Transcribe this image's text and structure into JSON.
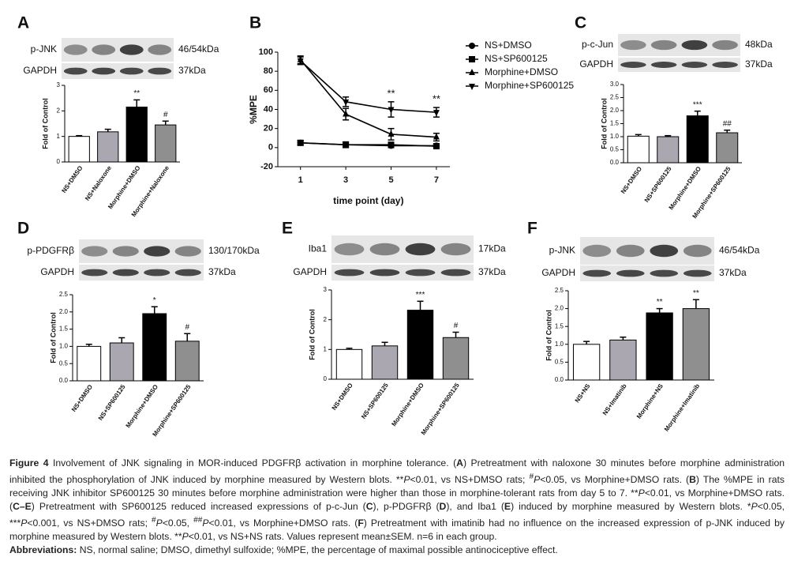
{
  "chart_data": [
    {
      "type": "bar",
      "panel": "A",
      "blots": [
        {
          "label": "p-JNK",
          "size": "46/54kDa"
        },
        {
          "label": "GAPDH",
          "size": "37kDa"
        }
      ],
      "ylabel": "Fold of Control",
      "categories": [
        "NS+DMSO",
        "NS+Naloxone",
        "Morphine+DMSO",
        "Morphine+Naloxone"
      ],
      "values": [
        1.0,
        1.18,
        2.15,
        1.45
      ],
      "errors": [
        0.03,
        0.1,
        0.28,
        0.15
      ],
      "annotations": [
        null,
        null,
        "**",
        "#"
      ],
      "colors": [
        "#ffffff",
        "#aaa7b1",
        "#000000",
        "#8f8f8f"
      ],
      "ylim": [
        0,
        3
      ],
      "yticks": [
        0,
        1,
        2,
        3
      ]
    },
    {
      "type": "line",
      "panel": "B",
      "ylabel": "%MPE",
      "xlabel": "time point (day)",
      "x": [
        1,
        3,
        5,
        7
      ],
      "series": [
        {
          "name": "NS+DMSO",
          "marker": "circle",
          "color": "#000000",
          "values": [
            5,
            3,
            2,
            2
          ],
          "errors": [
            2,
            2,
            2,
            1.5
          ]
        },
        {
          "name": "NS+SP600125",
          "marker": "square",
          "color": "#000000",
          "values": [
            5,
            3,
            3,
            1.5
          ],
          "errors": [
            2.5,
            3,
            2,
            1.5
          ]
        },
        {
          "name": "Morphine+DMSO",
          "marker": "triangle-up",
          "color": "#000000",
          "values": [
            92,
            35,
            14,
            11
          ],
          "errors": [
            4,
            6,
            6,
            4
          ]
        },
        {
          "name": "Morphine+SP600125",
          "marker": "triangle-down",
          "color": "#000000",
          "values": [
            91,
            48,
            40,
            37
          ],
          "errors": [
            4,
            5,
            8,
            5
          ]
        }
      ],
      "annotations": [
        null,
        null,
        "**",
        "**"
      ],
      "legend": "right",
      "xlim": [
        0,
        7.6
      ],
      "xticks": [
        1,
        3,
        5,
        7
      ],
      "ylim": [
        -20,
        100
      ],
      "yticks": [
        -20,
        0,
        20,
        40,
        60,
        80,
        100
      ]
    },
    {
      "type": "bar",
      "panel": "C",
      "blots": [
        {
          "label": "p-c-Jun",
          "size": "48kDa"
        },
        {
          "label": "GAPDH",
          "size": "37kDa"
        }
      ],
      "ylabel": "Fold of Control",
      "categories": [
        "NS+DMSO",
        "NS+SP600125",
        "Morphine+DMSO",
        "Morphine+SP600125"
      ],
      "values": [
        1.02,
        1.0,
        1.8,
        1.15
      ],
      "errors": [
        0.06,
        0.04,
        0.18,
        0.1
      ],
      "annotations": [
        null,
        null,
        "***",
        "##"
      ],
      "colors": [
        "#ffffff",
        "#aaa7b1",
        "#000000",
        "#8f8f8f"
      ],
      "ylim": [
        0,
        3
      ],
      "yticks": [
        {
          "value": 0,
          "label": "0.0"
        },
        0.5,
        {
          "value": 1,
          "label": "1.0"
        },
        1.5,
        {
          "value": 2,
          "label": "2.0"
        },
        2.5,
        {
          "value": 3,
          "label": "3.0"
        }
      ]
    },
    {
      "type": "bar",
      "panel": "D",
      "blots": [
        {
          "label": "p-PDGFRβ",
          "size": "130/170kDa"
        },
        {
          "label": "GAPDH",
          "size": "37kDa"
        }
      ],
      "ylabel": "Fold of Control",
      "categories": [
        "NS+DMSO",
        "NS+SP600125",
        "Morphine+DMSO",
        "Morphine+SP600125"
      ],
      "values": [
        1.0,
        1.1,
        1.95,
        1.15
      ],
      "errors": [
        0.06,
        0.15,
        0.2,
        0.22
      ],
      "annotations": [
        null,
        null,
        "*",
        "#"
      ],
      "colors": [
        "#ffffff",
        "#aaa7b1",
        "#000000",
        "#8f8f8f"
      ],
      "ylim": [
        0,
        2.5
      ],
      "yticks": [
        {
          "value": 0,
          "label": "0.0"
        },
        0.5,
        {
          "value": 1,
          "label": "1.0"
        },
        1.5,
        {
          "value": 2,
          "label": "2.0"
        },
        2.5
      ]
    },
    {
      "type": "bar",
      "panel": "E",
      "blots": [
        {
          "label": "Iba1",
          "size": "17kDa"
        },
        {
          "label": "GAPDH",
          "size": "37kDa"
        }
      ],
      "ylabel": "Fold of Control",
      "categories": [
        "NS+DMSO",
        "NS+SP600125",
        "Morphine+DMSO",
        "Morphine+SP600125"
      ],
      "values": [
        1.0,
        1.12,
        2.32,
        1.4
      ],
      "errors": [
        0.04,
        0.12,
        0.3,
        0.18
      ],
      "annotations": [
        null,
        null,
        "***",
        "#"
      ],
      "colors": [
        "#ffffff",
        "#aaa7b1",
        "#000000",
        "#8f8f8f"
      ],
      "ylim": [
        0,
        3
      ],
      "yticks": [
        0,
        1,
        2,
        3
      ]
    },
    {
      "type": "bar",
      "panel": "F",
      "blots": [
        {
          "label": "p-JNK",
          "size": "46/54kDa"
        },
        {
          "label": "GAPDH",
          "size": "37kDa"
        }
      ],
      "ylabel": "Fold of Control",
      "categories": [
        "NS+NS",
        "NS+Imatinib",
        "Morphine+NS",
        "Morphine+Imatinib"
      ],
      "values": [
        1.0,
        1.12,
        1.88,
        2.0
      ],
      "errors": [
        0.08,
        0.08,
        0.12,
        0.25
      ],
      "annotations": [
        null,
        null,
        "**",
        "**"
      ],
      "colors": [
        "#ffffff",
        "#aaa7b1",
        "#000000",
        "#8f8f8f"
      ],
      "ylim": [
        0,
        2.5
      ],
      "yticks": [
        {
          "value": 0,
          "label": "0.0"
        },
        0.5,
        {
          "value": 1,
          "label": "1.0"
        },
        1.5,
        {
          "value": 2,
          "label": "2.0"
        },
        2.5
      ]
    }
  ],
  "caption": {
    "runs": [
      {
        "b": "Figure 4"
      },
      " Involvement of JNK signaling in MOR-induced PDGFRβ activation in morphine tolerance. (",
      {
        "b": "A"
      },
      ") Pretreatment with naloxone 30 minutes before morphine administration inhibited the phosphorylation of JNK induced by morphine measured by Western blots. **",
      {
        "i": "P"
      },
      "<0.01, vs NS+DMSO rats; ",
      {
        "sup": "#"
      },
      {
        "i": "P"
      },
      "<0.05, vs Morphine+DMSO rats. (",
      {
        "b": "B"
      },
      ") The %MPE in rats receiving JNK inhibitor SP600125 30 minutes before morphine administration were higher than those in morphine-tolerant rats from day 5 to 7. **",
      {
        "i": "P"
      },
      "<0.01, vs Morphine+DMSO rats. (",
      {
        "b": "C–E"
      },
      ") Pretreatment with SP600125 reduced increased expressions of p-c-Jun (",
      {
        "b": "C"
      },
      "), p-PDGFRβ (",
      {
        "b": "D"
      },
      "), and Iba1 (",
      {
        "b": "E"
      },
      ") induced by morphine measured by Western blots. *",
      {
        "i": "P"
      },
      "<0.05, ***",
      {
        "i": "P"
      },
      "<0.001, vs NS+DMSO rats; ",
      {
        "sup": "#"
      },
      {
        "i": "P"
      },
      "<0.05, ",
      {
        "sup": "##"
      },
      {
        "i": "P"
      },
      "<0.01, vs Morphine+DMSO rats. (",
      {
        "b": "F"
      },
      ") Pretreatment with imatinib had no influence on the increased expression of p-JNK induced by morphine measured by Western blots. **",
      {
        "i": "P"
      },
      "<0.01, vs NS+NS rats. Values represent mean±SEM. n=6 in each group."
    ],
    "abbreviations": [
      {
        "b": "Abbreviations:"
      },
      " NS, normal saline; DMSO, dimethyl sulfoxide; %MPE, the percentage of maximal possible antinociceptive effect."
    ]
  }
}
